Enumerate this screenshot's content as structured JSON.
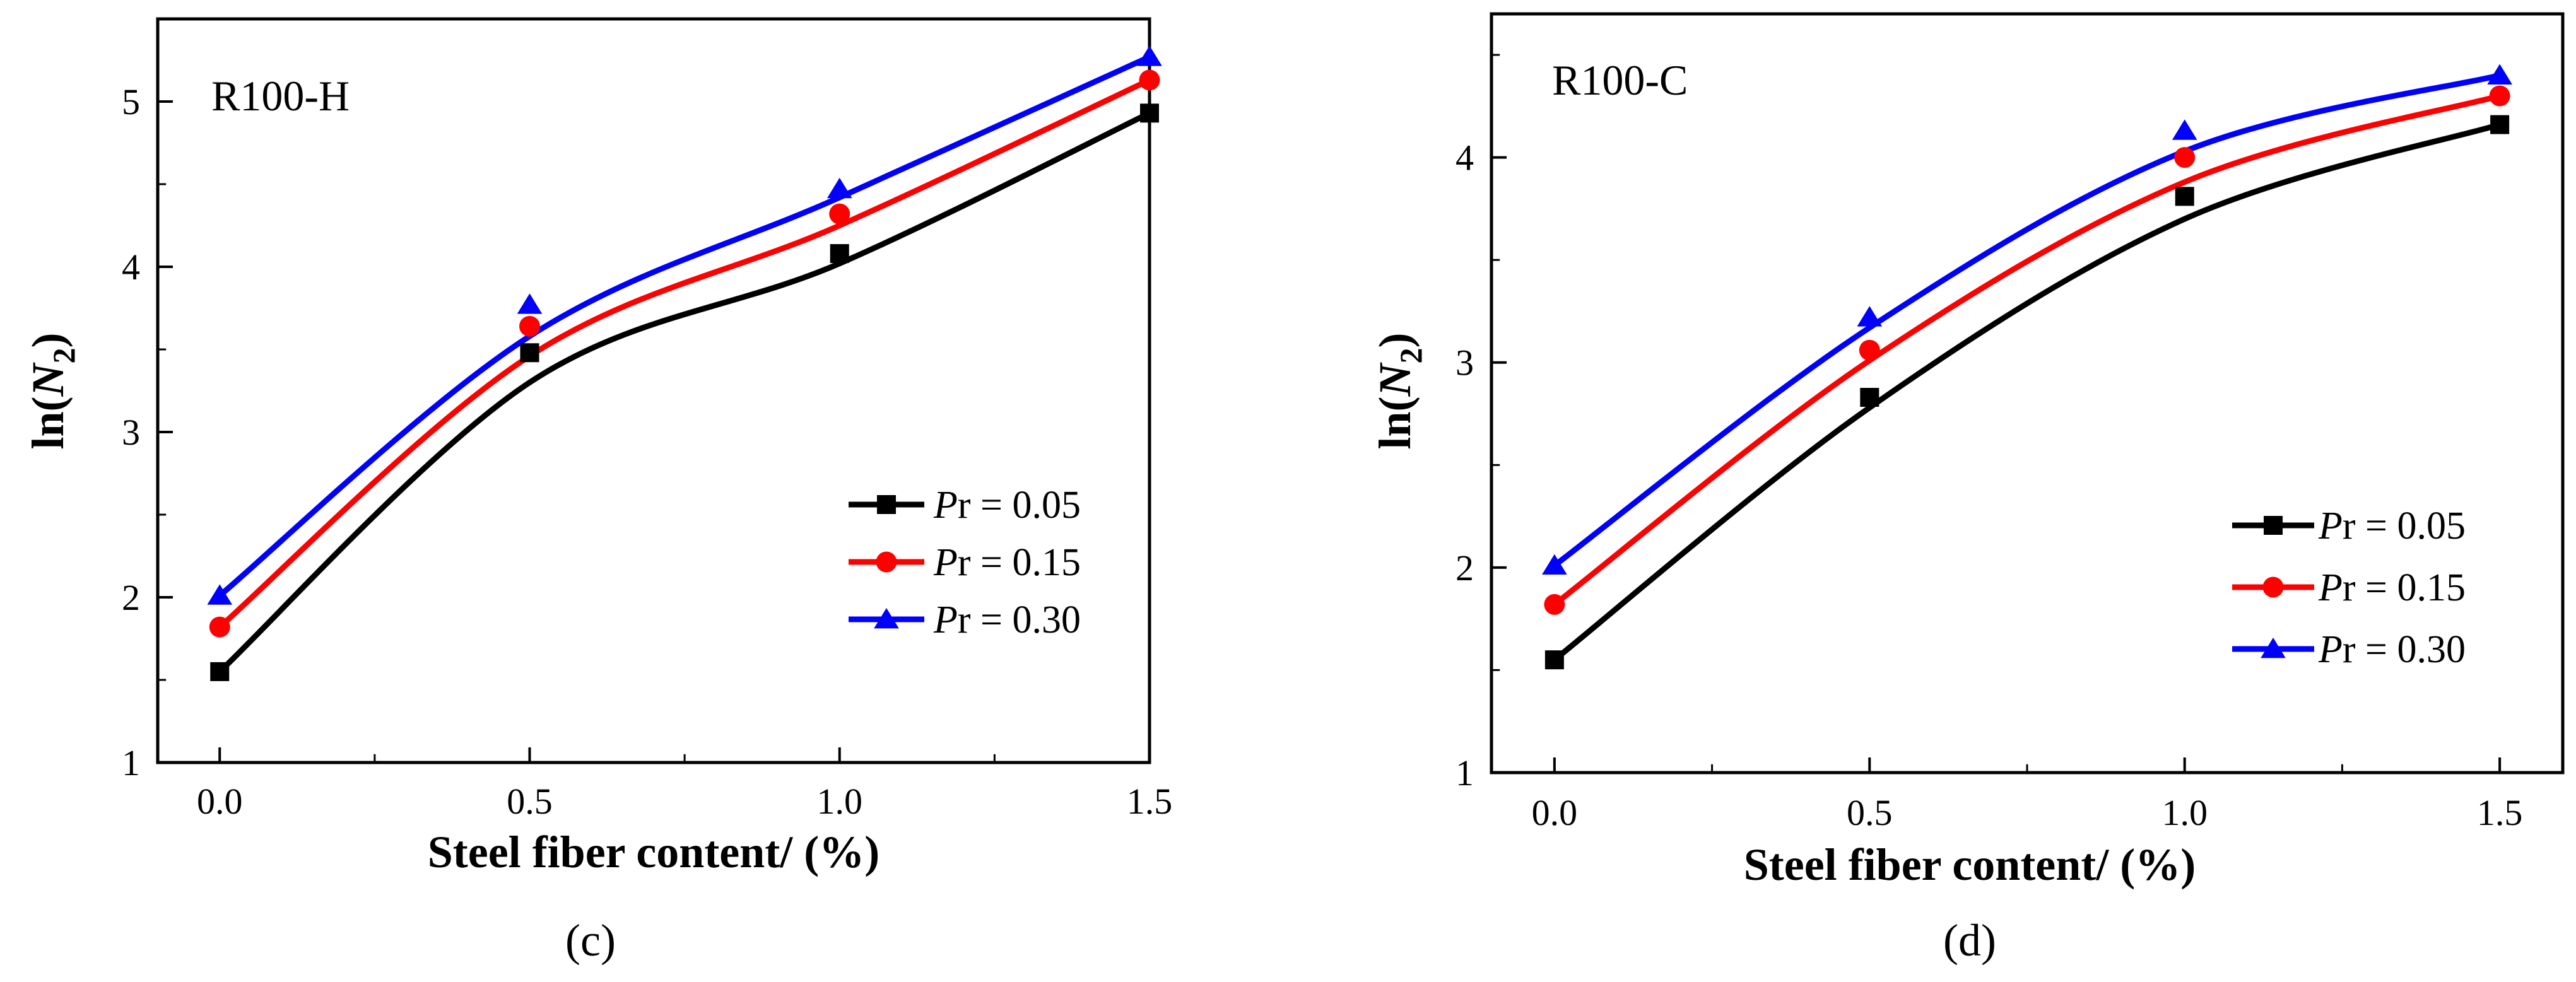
{
  "chart_data": [
    {
      "type": "line",
      "panel_id": "c",
      "caption": "(c)",
      "label": "R100-H",
      "xlabel": "Steel fiber content/ (%)",
      "ylabel_prefix": "ln(",
      "ylabel_var": "N",
      "ylabel_sub": "2",
      "ylabel_suffix": ")",
      "xlim": [
        -0.1,
        1.5
      ],
      "ylim": [
        1,
        5.5
      ],
      "xticks": [
        0.0,
        0.5,
        1.0,
        1.5
      ],
      "xtick_labels": [
        "0.0",
        "0.5",
        "1.0",
        "1.5"
      ],
      "yticks": [
        1,
        2,
        3,
        4,
        5
      ],
      "ytick_labels": [
        "1",
        "2",
        "3",
        "4",
        "5"
      ],
      "x": [
        0.0,
        0.5,
        1.0,
        1.5
      ],
      "legend_position": "lower-right",
      "series": [
        {
          "name": "Pr = 0.05",
          "legend_var": "P",
          "legend_rest": "r = 0.05",
          "color": "#000000",
          "marker": "square",
          "values": [
            1.55,
            3.48,
            4.08,
            4.93
          ],
          "fit": [
            1.55,
            3.3,
            4.02,
            4.93
          ]
        },
        {
          "name": "Pr = 0.15",
          "legend_var": "P",
          "legend_rest": "r = 0.15",
          "color": "#ff0000",
          "marker": "circle",
          "values": [
            1.82,
            3.64,
            4.32,
            5.13
          ],
          "fit": [
            1.82,
            3.46,
            4.25,
            5.13
          ]
        },
        {
          "name": "Pr = 0.30",
          "legend_var": "P",
          "legend_rest": "r = 0.30",
          "color": "#0000ff",
          "marker": "triangle",
          "values": [
            2.01,
            3.77,
            4.47,
            5.27
          ],
          "fit": [
            2.01,
            3.58,
            4.42,
            5.27
          ]
        }
      ]
    },
    {
      "type": "line",
      "panel_id": "d",
      "caption": "(d)",
      "label": "R100-C",
      "xlabel": "Steel fiber content/ (%)",
      "ylabel_prefix": "ln(",
      "ylabel_var": "N",
      "ylabel_sub": "2",
      "ylabel_suffix": ")",
      "xlim": [
        -0.1,
        1.6
      ],
      "ylim": [
        1,
        4.7
      ],
      "xticks": [
        0.0,
        0.5,
        1.0,
        1.5
      ],
      "xtick_labels": [
        "0.0",
        "0.5",
        "1.0",
        "1.5"
      ],
      "yticks": [
        1,
        2,
        3,
        4
      ],
      "ytick_labels": [
        "1",
        "2",
        "3",
        "4"
      ],
      "x": [
        0.0,
        0.5,
        1.0,
        1.5
      ],
      "legend_position": "lower-right",
      "series": [
        {
          "name": "Pr = 0.05",
          "legend_var": "P",
          "legend_rest": "r = 0.05",
          "color": "#000000",
          "marker": "square",
          "values": [
            1.55,
            2.83,
            3.81,
            4.16
          ],
          "fit": [
            1.55,
            2.78,
            3.7,
            4.16
          ]
        },
        {
          "name": "Pr = 0.15",
          "legend_var": "P",
          "legend_rest": "r = 0.15",
          "color": "#ff0000",
          "marker": "circle",
          "values": [
            1.82,
            3.06,
            4.0,
            4.3
          ],
          "fit": [
            1.82,
            3.01,
            3.88,
            4.3
          ]
        },
        {
          "name": "Pr = 0.30",
          "legend_var": "P",
          "legend_rest": "r = 0.30",
          "color": "#0000ff",
          "marker": "triangle",
          "values": [
            2.01,
            3.22,
            4.13,
            4.4
          ],
          "fit": [
            2.01,
            3.17,
            4.03,
            4.4
          ]
        }
      ]
    }
  ]
}
